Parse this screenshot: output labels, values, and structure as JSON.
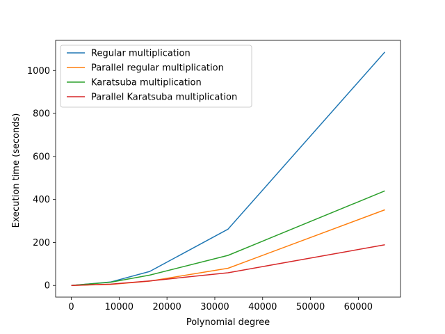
{
  "chart_data": {
    "type": "line",
    "title": "",
    "xlabel": "Polynomial degree",
    "ylabel": "Execution time (seconds)",
    "xlim": [
      -3277,
      68813
    ],
    "ylim": [
      -54.3,
      1140
    ],
    "xticks": [
      0,
      10000,
      20000,
      30000,
      40000,
      50000,
      60000
    ],
    "yticks": [
      0,
      200,
      400,
      600,
      800,
      1000
    ],
    "grid": false,
    "legend_position": "upper left",
    "x": [
      0,
      8192,
      16384,
      32768,
      65536
    ],
    "series": [
      {
        "name": "Regular multiplication",
        "color": "#1f77b4",
        "values": [
          0,
          16,
          65,
          262,
          1086
        ]
      },
      {
        "name": "Parallel regular multiplication",
        "color": "#ff7f0e",
        "values": [
          0,
          5,
          20,
          80,
          352
        ]
      },
      {
        "name": "Karatsuba multiplication",
        "color": "#2ca02c",
        "values": [
          0,
          15,
          48,
          140,
          440
        ]
      },
      {
        "name": "Parallel Karatsuba multiplication",
        "color": "#d62728",
        "values": [
          0,
          6,
          21,
          59,
          189
        ]
      }
    ]
  }
}
